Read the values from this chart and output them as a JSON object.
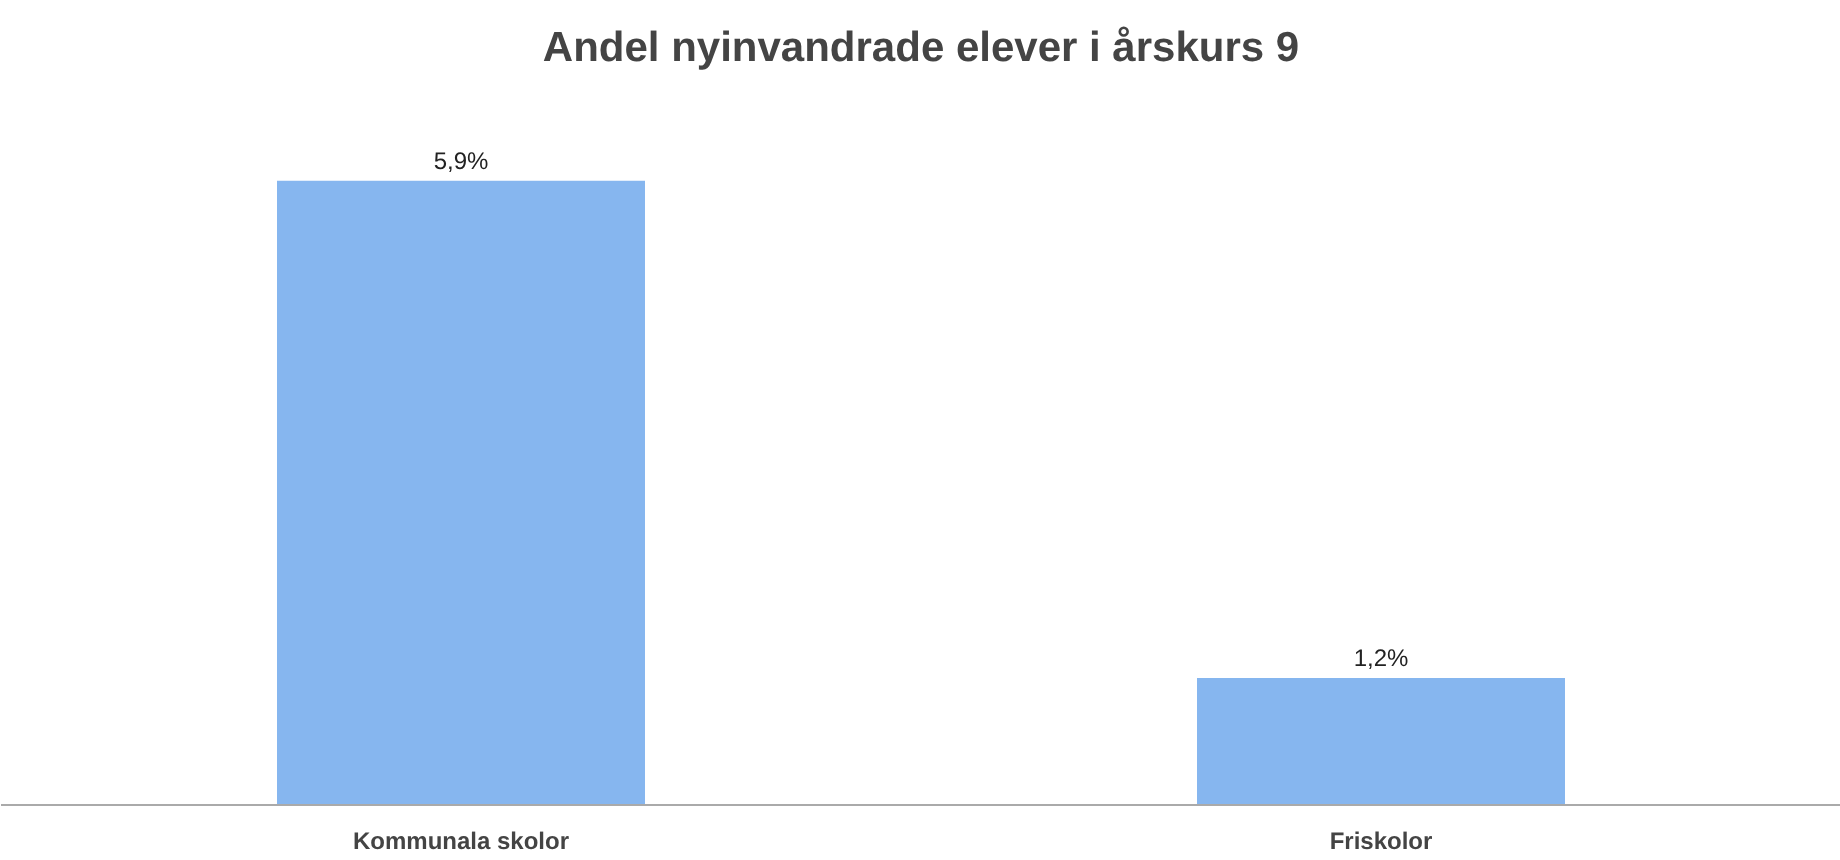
{
  "chart_data": {
    "type": "bar",
    "title": "Andel nyinvandrade elever i årskurs 9",
    "categories": [
      "Kommunala skolor",
      "Friskolor"
    ],
    "values": [
      5.9,
      1.2
    ],
    "value_labels": [
      "5,9%",
      "1,2%"
    ],
    "color": "#86b6ef"
  }
}
